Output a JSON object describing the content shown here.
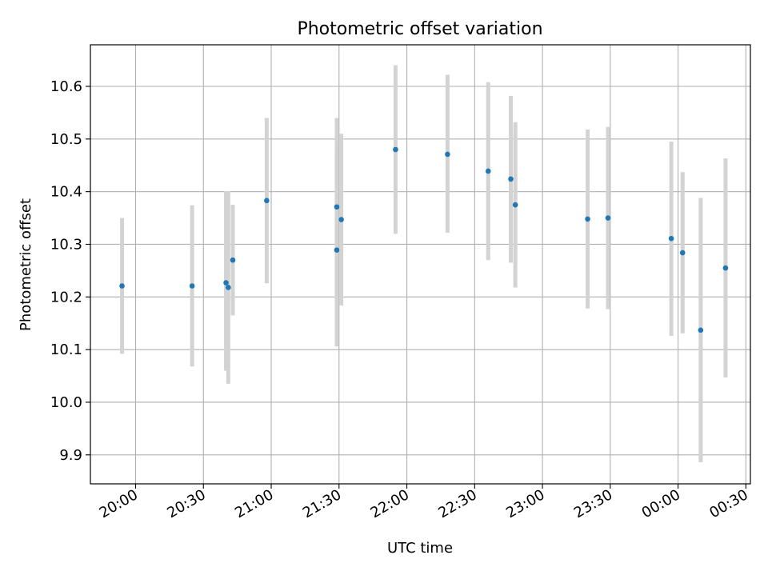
{
  "chart_data": {
    "type": "scatter",
    "title": "Photometric offset variation",
    "xlabel": "UTC time",
    "ylabel": "Photometric offset",
    "grid": true,
    "legend": "none",
    "xlim": [
      "19:40",
      "00:32"
    ],
    "ylim": [
      9.845,
      10.679
    ],
    "x_ticks": [
      "20:00",
      "20:30",
      "21:00",
      "21:30",
      "22:00",
      "22:30",
      "23:00",
      "23:30",
      "00:00",
      "00:30"
    ],
    "y_ticks": [
      "9.9",
      "10.0",
      "10.1",
      "10.2",
      "10.3",
      "10.4",
      "10.5",
      "10.6"
    ],
    "colors": {
      "point": "#1f77b4",
      "errorbar": "#d3d3d3",
      "grid": "#b0b0b0"
    },
    "series": [
      {
        "points": [
          {
            "x": "19:54",
            "y": 10.221,
            "ylow": 10.092,
            "yhigh": 10.35
          },
          {
            "x": "20:25",
            "y": 10.221,
            "ylow": 10.068,
            "yhigh": 10.374
          },
          {
            "x": "20:40",
            "y": 10.227,
            "ylow": 10.06,
            "yhigh": 10.401
          },
          {
            "x": "20:41",
            "y": 10.218,
            "ylow": 10.035,
            "yhigh": 10.401
          },
          {
            "x": "20:43",
            "y": 10.27,
            "ylow": 10.165,
            "yhigh": 10.375
          },
          {
            "x": "20:58",
            "y": 10.383,
            "ylow": 10.226,
            "yhigh": 10.54
          },
          {
            "x": "21:29",
            "y": 10.371,
            "ylow": 10.2,
            "yhigh": 10.54
          },
          {
            "x": "21:29",
            "y": 10.289,
            "ylow": 10.106,
            "yhigh": 10.475
          },
          {
            "x": "21:31",
            "y": 10.347,
            "ylow": 10.184,
            "yhigh": 10.51
          },
          {
            "x": "21:55",
            "y": 10.48,
            "ylow": 10.32,
            "yhigh": 10.64
          },
          {
            "x": "22:18",
            "y": 10.471,
            "ylow": 10.322,
            "yhigh": 10.622
          },
          {
            "x": "22:36",
            "y": 10.439,
            "ylow": 10.27,
            "yhigh": 10.608
          },
          {
            "x": "22:46",
            "y": 10.424,
            "ylow": 10.265,
            "yhigh": 10.582
          },
          {
            "x": "22:48",
            "y": 10.375,
            "ylow": 10.218,
            "yhigh": 10.532
          },
          {
            "x": "23:20",
            "y": 10.348,
            "ylow": 10.178,
            "yhigh": 10.518
          },
          {
            "x": "23:29",
            "y": 10.35,
            "ylow": 10.177,
            "yhigh": 10.523
          },
          {
            "x": "23:57",
            "y": 10.311,
            "ylow": 10.126,
            "yhigh": 10.495
          },
          {
            "x": "00:02",
            "y": 10.284,
            "ylow": 10.131,
            "yhigh": 10.437
          },
          {
            "x": "00:10",
            "y": 10.137,
            "ylow": 9.886,
            "yhigh": 10.388
          },
          {
            "x": "00:21",
            "y": 10.255,
            "ylow": 10.047,
            "yhigh": 10.463
          }
        ]
      }
    ]
  }
}
